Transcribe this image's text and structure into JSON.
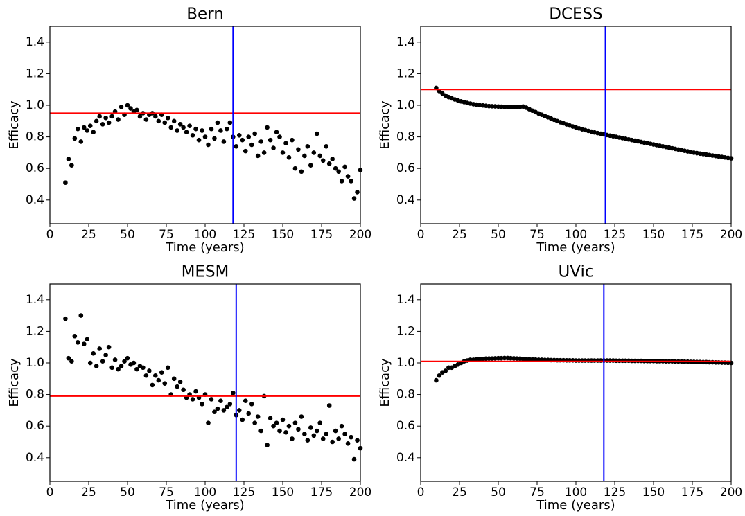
{
  "chart_data": [
    {
      "type": "scatter",
      "title": "Bern",
      "xlabel": "Time (years)",
      "ylabel": "Efficacy",
      "color": "#000000",
      "xlim": [
        0,
        200
      ],
      "ylim": [
        0.25,
        1.5
      ],
      "xticks": [
        0,
        25,
        50,
        75,
        100,
        125,
        150,
        175,
        200
      ],
      "yticks": [
        0.4,
        0.6,
        0.8,
        {
          "value": 1,
          "label": "1.0"
        },
        1.2,
        1.4
      ],
      "hline": {
        "value": 0.95,
        "color": "#ff0000"
      },
      "vline": {
        "value": 118,
        "color": "#0000ff"
      },
      "x": [
        10,
        12,
        14,
        16,
        18,
        20,
        22,
        24,
        26,
        28,
        30,
        32,
        34,
        36,
        38,
        40,
        42,
        44,
        46,
        48,
        50,
        52,
        54,
        56,
        58,
        60,
        62,
        64,
        66,
        68,
        70,
        72,
        74,
        76,
        78,
        80,
        82,
        84,
        86,
        88,
        90,
        92,
        94,
        96,
        98,
        100,
        102,
        104,
        106,
        108,
        110,
        112,
        114,
        116,
        118,
        120,
        122,
        124,
        126,
        128,
        130,
        132,
        134,
        136,
        138,
        140,
        142,
        144,
        146,
        148,
        150,
        152,
        154,
        156,
        158,
        160,
        162,
        164,
        166,
        168,
        170,
        172,
        174,
        176,
        178,
        180,
        182,
        184,
        186,
        188,
        190,
        192,
        194,
        196,
        198,
        200
      ],
      "values": [
        0.51,
        0.66,
        0.62,
        0.79,
        0.85,
        0.77,
        0.86,
        0.84,
        0.87,
        0.83,
        0.9,
        0.93,
        0.88,
        0.92,
        0.89,
        0.93,
        0.96,
        0.91,
        0.99,
        0.94,
        1.0,
        0.98,
        0.96,
        0.97,
        0.93,
        0.95,
        0.91,
        0.94,
        0.95,
        0.93,
        0.9,
        0.94,
        0.89,
        0.92,
        0.86,
        0.9,
        0.84,
        0.88,
        0.86,
        0.83,
        0.87,
        0.81,
        0.85,
        0.78,
        0.84,
        0.8,
        0.75,
        0.85,
        0.79,
        0.89,
        0.84,
        0.77,
        0.85,
        0.89,
        0.8,
        0.74,
        0.81,
        0.78,
        0.71,
        0.8,
        0.75,
        0.82,
        0.68,
        0.77,
        0.7,
        0.86,
        0.78,
        0.73,
        0.83,
        0.8,
        0.7,
        0.76,
        0.67,
        0.78,
        0.6,
        0.72,
        0.58,
        0.68,
        0.74,
        0.62,
        0.7,
        0.82,
        0.68,
        0.65,
        0.74,
        0.63,
        0.66,
        0.6,
        0.58,
        0.52,
        0.61,
        0.55,
        0.52,
        0.41,
        0.45,
        0.59
      ]
    },
    {
      "type": "scatter",
      "title": "DCESS",
      "xlabel": "Time (years)",
      "ylabel": "Efficacy",
      "color": "#000000",
      "xlim": [
        0,
        200
      ],
      "ylim": [
        0.25,
        1.5
      ],
      "xticks": [
        0,
        25,
        50,
        75,
        100,
        125,
        150,
        175,
        200
      ],
      "yticks": [
        0.4,
        0.6,
        0.8,
        {
          "value": 1,
          "label": "1.0"
        },
        1.2,
        1.4
      ],
      "hline": {
        "value": 1.1,
        "color": "#ff0000"
      },
      "vline": {
        "value": 119,
        "color": "#0000ff"
      },
      "x": [
        10,
        12,
        14,
        16,
        18,
        20,
        22,
        24,
        26,
        28,
        30,
        32,
        34,
        36,
        38,
        40,
        42,
        44,
        46,
        48,
        50,
        52,
        54,
        56,
        58,
        60,
        62,
        64,
        66,
        68,
        70,
        72,
        74,
        76,
        78,
        80,
        82,
        84,
        86,
        88,
        90,
        92,
        94,
        96,
        98,
        100,
        102,
        104,
        106,
        108,
        110,
        112,
        114,
        116,
        118,
        120,
        122,
        124,
        126,
        128,
        130,
        132,
        134,
        136,
        138,
        140,
        142,
        144,
        146,
        148,
        150,
        152,
        154,
        156,
        158,
        160,
        162,
        164,
        166,
        168,
        170,
        172,
        174,
        176,
        178,
        180,
        182,
        184,
        186,
        188,
        190,
        192,
        194,
        196,
        198,
        200
      ],
      "values": [
        1.11,
        1.09,
        1.075,
        1.062,
        1.052,
        1.044,
        1.037,
        1.031,
        1.025,
        1.02,
        1.015,
        1.011,
        1.007,
        1.004,
        1.001,
        0.999,
        0.997,
        0.995,
        0.994,
        0.993,
        0.992,
        0.991,
        0.99,
        0.99,
        0.989,
        0.989,
        0.989,
        0.99,
        0.992,
        0.985,
        0.975,
        0.966,
        0.957,
        0.948,
        0.94,
        0.932,
        0.924,
        0.916,
        0.908,
        0.9,
        0.893,
        0.886,
        0.879,
        0.872,
        0.866,
        0.86,
        0.854,
        0.848,
        0.843,
        0.838,
        0.833,
        0.828,
        0.824,
        0.82,
        0.816,
        0.812,
        0.808,
        0.804,
        0.8,
        0.796,
        0.792,
        0.788,
        0.784,
        0.78,
        0.776,
        0.772,
        0.768,
        0.764,
        0.76,
        0.756,
        0.752,
        0.748,
        0.744,
        0.74,
        0.736,
        0.732,
        0.728,
        0.724,
        0.72,
        0.716,
        0.712,
        0.708,
        0.704,
        0.7,
        0.697,
        0.694,
        0.691,
        0.688,
        0.685,
        0.682,
        0.679,
        0.676,
        0.673,
        0.67,
        0.667,
        0.664
      ]
    },
    {
      "type": "scatter",
      "title": "MESM",
      "xlabel": "Time (years)",
      "ylabel": "Efficacy",
      "color": "#000000",
      "xlim": [
        0,
        200
      ],
      "ylim": [
        0.25,
        1.5
      ],
      "xticks": [
        0,
        25,
        50,
        75,
        100,
        125,
        150,
        175,
        200
      ],
      "yticks": [
        0.4,
        0.6,
        0.8,
        {
          "value": 1,
          "label": "1.0"
        },
        1.2,
        1.4
      ],
      "hline": {
        "value": 0.79,
        "color": "#ff0000"
      },
      "vline": {
        "value": 120,
        "color": "#0000ff"
      },
      "x": [
        10,
        12,
        14,
        16,
        18,
        20,
        22,
        24,
        26,
        28,
        30,
        32,
        34,
        36,
        38,
        40,
        42,
        44,
        46,
        48,
        50,
        52,
        54,
        56,
        58,
        60,
        62,
        64,
        66,
        68,
        70,
        72,
        74,
        76,
        78,
        80,
        82,
        84,
        86,
        88,
        90,
        92,
        94,
        96,
        98,
        100,
        102,
        104,
        106,
        108,
        110,
        112,
        114,
        116,
        118,
        120,
        122,
        124,
        126,
        128,
        130,
        132,
        134,
        136,
        138,
        140,
        142,
        144,
        146,
        148,
        150,
        152,
        154,
        156,
        158,
        160,
        162,
        164,
        166,
        168,
        170,
        172,
        174,
        176,
        178,
        180,
        182,
        184,
        186,
        188,
        190,
        192,
        194,
        196,
        198,
        200
      ],
      "values": [
        1.28,
        1.03,
        1.01,
        1.17,
        1.13,
        1.3,
        1.12,
        1.15,
        1.0,
        1.06,
        0.98,
        1.09,
        1.01,
        1.05,
        1.1,
        0.97,
        1.02,
        0.96,
        0.98,
        1.01,
        1.03,
        0.99,
        1.0,
        0.96,
        0.98,
        0.97,
        0.92,
        0.95,
        0.86,
        0.92,
        0.89,
        0.94,
        0.87,
        0.97,
        0.8,
        0.9,
        0.85,
        0.88,
        0.83,
        0.78,
        0.8,
        0.77,
        0.82,
        0.78,
        0.74,
        0.8,
        0.62,
        0.77,
        0.69,
        0.71,
        0.76,
        0.7,
        0.72,
        0.74,
        0.81,
        0.67,
        0.7,
        0.64,
        0.76,
        0.68,
        0.74,
        0.62,
        0.66,
        0.57,
        0.79,
        0.48,
        0.65,
        0.6,
        0.62,
        0.57,
        0.64,
        0.56,
        0.6,
        0.52,
        0.62,
        0.58,
        0.66,
        0.55,
        0.51,
        0.59,
        0.54,
        0.57,
        0.62,
        0.52,
        0.55,
        0.73,
        0.5,
        0.57,
        0.52,
        0.6,
        0.55,
        0.49,
        0.53,
        0.39,
        0.51,
        0.46
      ]
    },
    {
      "type": "scatter",
      "title": "UVic",
      "xlabel": "Time (years)",
      "ylabel": "Efficacy",
      "color": "#000000",
      "xlim": [
        0,
        200
      ],
      "ylim": [
        0.25,
        1.5
      ],
      "xticks": [
        0,
        25,
        50,
        75,
        100,
        125,
        150,
        175,
        200
      ],
      "yticks": [
        0.4,
        0.6,
        0.8,
        {
          "value": 1,
          "label": "1.0"
        },
        1.2,
        1.4
      ],
      "hline": {
        "value": 1.01,
        "color": "#ff0000"
      },
      "vline": {
        "value": 118,
        "color": "#0000ff"
      },
      "x": [
        10,
        12,
        14,
        16,
        18,
        20,
        22,
        24,
        26,
        28,
        30,
        32,
        34,
        36,
        38,
        40,
        42,
        44,
        46,
        48,
        50,
        52,
        54,
        56,
        58,
        60,
        62,
        64,
        66,
        68,
        70,
        72,
        74,
        76,
        78,
        80,
        82,
        84,
        86,
        88,
        90,
        92,
        94,
        96,
        98,
        100,
        102,
        104,
        106,
        108,
        110,
        112,
        114,
        116,
        118,
        120,
        122,
        124,
        126,
        128,
        130,
        132,
        134,
        136,
        138,
        140,
        142,
        144,
        146,
        148,
        150,
        152,
        154,
        156,
        158,
        160,
        162,
        164,
        166,
        168,
        170,
        172,
        174,
        176,
        178,
        180,
        182,
        184,
        186,
        188,
        190,
        192,
        194,
        196,
        198,
        200
      ],
      "values": [
        0.89,
        0.92,
        0.94,
        0.95,
        0.97,
        0.97,
        0.98,
        0.99,
        1.0,
        1.01,
        1.015,
        1.02,
        1.02,
        1.025,
        1.025,
        1.025,
        1.027,
        1.028,
        1.028,
        1.029,
        1.03,
        1.03,
        1.031,
        1.031,
        1.03,
        1.029,
        1.028,
        1.027,
        1.025,
        1.024,
        1.023,
        1.022,
        1.021,
        1.02,
        1.02,
        1.019,
        1.019,
        1.018,
        1.018,
        1.017,
        1.017,
        1.017,
        1.016,
        1.016,
        1.016,
        1.015,
        1.015,
        1.015,
        1.015,
        1.015,
        1.015,
        1.015,
        1.015,
        1.015,
        1.015,
        1.015,
        1.015,
        1.015,
        1.014,
        1.014,
        1.014,
        1.014,
        1.014,
        1.013,
        1.013,
        1.013,
        1.013,
        1.012,
        1.012,
        1.012,
        1.012,
        1.011,
        1.011,
        1.011,
        1.01,
        1.01,
        1.01,
        1.009,
        1.009,
        1.009,
        1.008,
        1.008,
        1.007,
        1.007,
        1.006,
        1.006,
        1.005,
        1.005,
        1.004,
        1.004,
        1.003,
        1.003,
        1.002,
        1.002,
        1.001,
        1.0
      ]
    }
  ]
}
